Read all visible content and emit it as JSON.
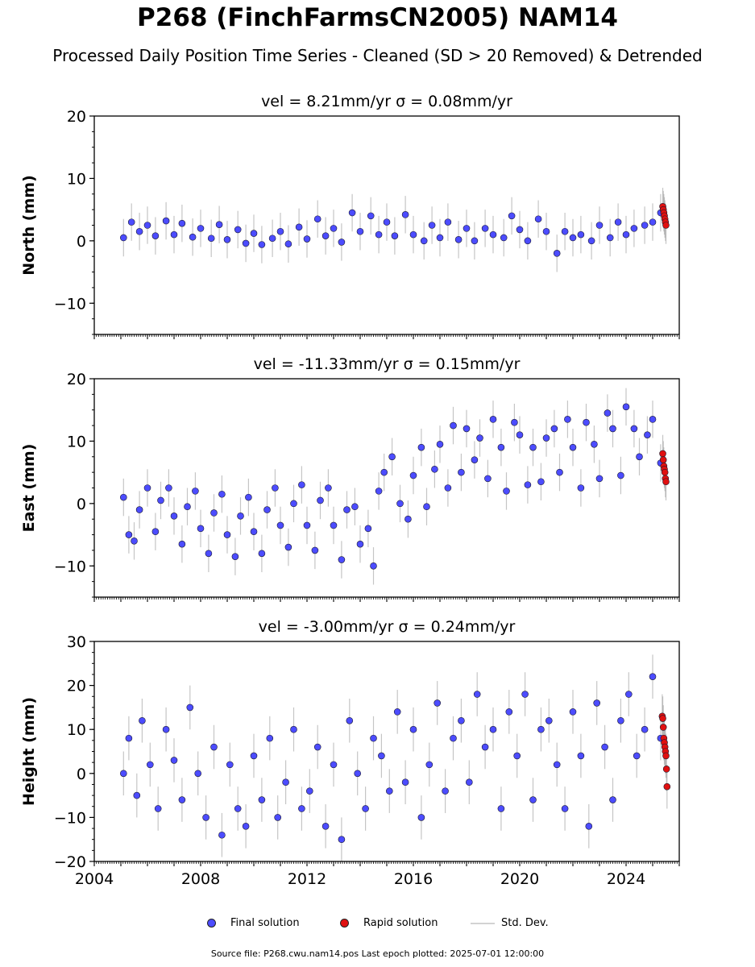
{
  "header": {
    "title": "P268 (FinchFarmsCN2005) NAM14",
    "subtitle": "Processed Daily Position Time Series - Cleaned (SD > 20 Removed) & Detrended"
  },
  "legend": {
    "final": "Final solution",
    "rapid": "Rapid solution",
    "std": "Std. Dev."
  },
  "footer": {
    "source": "Source file: P268.cwu.nam14.pos  Last epoch plotted: 2025-07-01 12:00:00"
  },
  "colors": {
    "final": "#4c4cff",
    "rapid": "#e01010",
    "std": "#a0a0a0",
    "edge": "#1a1a2e"
  },
  "chart_data": [
    {
      "type": "scatter",
      "title": "vel = 8.21mm/yr   σ = 0.08mm/yr",
      "ylabel": "North (mm)",
      "xlim": [
        2004.0,
        2026.0
      ],
      "ylim": [
        -15,
        20
      ],
      "yticks": [
        -10,
        0,
        10,
        20
      ],
      "ytick_labels": [
        "−10",
        "0",
        "10",
        "20"
      ],
      "xticks": [],
      "xtick_labels": [],
      "series": [
        {
          "name": "Final solution",
          "x": [
            2005.1,
            2005.4,
            2005.7,
            2006.0,
            2006.3,
            2006.7,
            2007.0,
            2007.3,
            2007.7,
            2008.0,
            2008.4,
            2008.7,
            2009.0,
            2009.4,
            2009.7,
            2010.0,
            2010.3,
            2010.7,
            2011.0,
            2011.3,
            2011.7,
            2012.0,
            2012.4,
            2012.7,
            2013.0,
            2013.3,
            2013.7,
            2014.0,
            2014.4,
            2014.7,
            2015.0,
            2015.3,
            2015.7,
            2016.0,
            2016.4,
            2016.7,
            2017.0,
            2017.3,
            2017.7,
            2018.0,
            2018.3,
            2018.7,
            2019.0,
            2019.4,
            2019.7,
            2020.0,
            2020.3,
            2020.7,
            2021.0,
            2021.4,
            2021.7,
            2022.0,
            2022.3,
            2022.7,
            2023.0,
            2023.4,
            2023.7,
            2024.0,
            2024.3,
            2024.7,
            2025.0,
            2025.3
          ],
          "y": [
            0.5,
            3.0,
            1.5,
            2.5,
            0.8,
            3.2,
            1.0,
            2.8,
            0.6,
            2.0,
            0.4,
            2.6,
            0.2,
            1.8,
            -0.4,
            1.2,
            -0.6,
            0.4,
            1.5,
            -0.5,
            2.2,
            0.3,
            3.5,
            0.8,
            2.0,
            -0.2,
            4.5,
            1.5,
            4.0,
            1.0,
            3.0,
            0.8,
            4.2,
            1.0,
            0.0,
            2.5,
            0.5,
            3.0,
            0.2,
            2.0,
            0.0,
            2.0,
            1.0,
            0.5,
            4.0,
            1.8,
            0.0,
            3.5,
            1.5,
            -2.0,
            1.5,
            0.5,
            1.0,
            0.0,
            2.5,
            0.5,
            3.0,
            1.0,
            2.0,
            2.5,
            3.0,
            4.5
          ]
        },
        {
          "name": "Rapid solution",
          "x": [
            2025.38,
            2025.4,
            2025.42,
            2025.44,
            2025.46,
            2025.48,
            2025.5
          ],
          "y": [
            5.5,
            5.0,
            4.5,
            4.0,
            3.5,
            3.0,
            2.5
          ]
        }
      ]
    },
    {
      "type": "scatter",
      "title": "vel = -11.33mm/yr   σ = 0.15mm/yr",
      "ylabel": "East (mm)",
      "xlim": [
        2004.0,
        2026.0
      ],
      "ylim": [
        -15,
        20
      ],
      "yticks": [
        -10,
        0,
        10,
        20
      ],
      "ytick_labels": [
        "−10",
        "0",
        "10",
        "20"
      ],
      "xticks": [],
      "xtick_labels": [],
      "series": [
        {
          "name": "Final solution",
          "x": [
            2005.1,
            2005.3,
            2005.5,
            2005.7,
            2006.0,
            2006.3,
            2006.5,
            2006.8,
            2007.0,
            2007.3,
            2007.5,
            2007.8,
            2008.0,
            2008.3,
            2008.5,
            2008.8,
            2009.0,
            2009.3,
            2009.5,
            2009.8,
            2010.0,
            2010.3,
            2010.5,
            2010.8,
            2011.0,
            2011.3,
            2011.5,
            2011.8,
            2012.0,
            2012.3,
            2012.5,
            2012.8,
            2013.0,
            2013.3,
            2013.5,
            2013.8,
            2014.0,
            2014.3,
            2014.5,
            2014.7,
            2014.9,
            2015.2,
            2015.5,
            2015.8,
            2016.0,
            2016.3,
            2016.5,
            2016.8,
            2017.0,
            2017.3,
            2017.5,
            2017.8,
            2018.0,
            2018.3,
            2018.5,
            2018.8,
            2019.0,
            2019.3,
            2019.5,
            2019.8,
            2020.0,
            2020.3,
            2020.5,
            2020.8,
            2021.0,
            2021.3,
            2021.5,
            2021.8,
            2022.0,
            2022.3,
            2022.5,
            2022.8,
            2023.0,
            2023.3,
            2023.5,
            2023.8,
            2024.0,
            2024.3,
            2024.5,
            2024.8,
            2025.0,
            2025.3
          ],
          "y": [
            1.0,
            -5.0,
            -6.0,
            -1.0,
            2.5,
            -4.5,
            0.5,
            2.5,
            -2.0,
            -6.5,
            -0.5,
            2.0,
            -4.0,
            -8.0,
            -1.5,
            1.5,
            -5.0,
            -8.5,
            -2.0,
            1.0,
            -4.5,
            -8.0,
            -1.0,
            2.5,
            -3.5,
            -7.0,
            0.0,
            3.0,
            -3.5,
            -7.5,
            0.5,
            2.5,
            -3.5,
            -9.0,
            -1.0,
            -0.5,
            -6.5,
            -4.0,
            -10.0,
            2.0,
            5.0,
            7.5,
            0.0,
            -2.5,
            4.5,
            9.0,
            -0.5,
            5.5,
            9.5,
            2.5,
            12.5,
            5.0,
            12.0,
            7.0,
            10.5,
            4.0,
            13.5,
            9.0,
            2.0,
            13.0,
            11.0,
            3.0,
            9.0,
            3.5,
            10.5,
            12.0,
            5.0,
            13.5,
            9.0,
            2.5,
            13.0,
            9.5,
            4.0,
            14.5,
            12.0,
            4.5,
            15.5,
            12.0,
            7.5,
            11.0,
            13.5,
            6.5
          ]
        },
        {
          "name": "Rapid solution",
          "x": [
            2025.38,
            2025.4,
            2025.42,
            2025.44,
            2025.46,
            2025.48,
            2025.5
          ],
          "y": [
            8.0,
            7.0,
            6.0,
            5.5,
            5.0,
            4.0,
            3.5
          ]
        }
      ]
    },
    {
      "type": "scatter",
      "title": "vel = -3.00mm/yr   σ = 0.24mm/yr",
      "ylabel": "Height (mm)",
      "xlim": [
        2004.0,
        2026.0
      ],
      "ylim": [
        -20,
        30
      ],
      "yticks": [
        -20,
        -10,
        0,
        10,
        20,
        30
      ],
      "ytick_labels": [
        "−20",
        "−10",
        "0",
        "10",
        "20",
        "30"
      ],
      "xticks": [
        2004,
        2008,
        2012,
        2016,
        2020,
        2024
      ],
      "xtick_labels": [
        "2004",
        "2008",
        "2012",
        "2016",
        "2020",
        "2024"
      ],
      "series": [
        {
          "name": "Final solution",
          "x": [
            2005.1,
            2005.3,
            2005.6,
            2005.8,
            2006.1,
            2006.4,
            2006.7,
            2007.0,
            2007.3,
            2007.6,
            2007.9,
            2008.2,
            2008.5,
            2008.8,
            2009.1,
            2009.4,
            2009.7,
            2010.0,
            2010.3,
            2010.6,
            2010.9,
            2011.2,
            2011.5,
            2011.8,
            2012.1,
            2012.4,
            2012.7,
            2013.0,
            2013.3,
            2013.6,
            2013.9,
            2014.2,
            2014.5,
            2014.8,
            2015.1,
            2015.4,
            2015.7,
            2016.0,
            2016.3,
            2016.6,
            2016.9,
            2017.2,
            2017.5,
            2017.8,
            2018.1,
            2018.4,
            2018.7,
            2019.0,
            2019.3,
            2019.6,
            2019.9,
            2020.2,
            2020.5,
            2020.8,
            2021.1,
            2021.4,
            2021.7,
            2022.0,
            2022.3,
            2022.6,
            2022.9,
            2023.2,
            2023.5,
            2023.8,
            2024.1,
            2024.4,
            2024.7,
            2025.0,
            2025.3
          ],
          "y": [
            0.0,
            8.0,
            -5.0,
            12.0,
            2.0,
            -8.0,
            10.0,
            3.0,
            -6.0,
            15.0,
            0.0,
            -10.0,
            6.0,
            -14.0,
            2.0,
            -8.0,
            -12.0,
            4.0,
            -6.0,
            8.0,
            -10.0,
            -2.0,
            10.0,
            -8.0,
            -4.0,
            6.0,
            -12.0,
            2.0,
            -15.0,
            12.0,
            0.0,
            -8.0,
            8.0,
            4.0,
            -4.0,
            14.0,
            -2.0,
            10.0,
            -10.0,
            2.0,
            16.0,
            -4.0,
            8.0,
            12.0,
            -2.0,
            18.0,
            6.0,
            10.0,
            -8.0,
            14.0,
            4.0,
            18.0,
            -6.0,
            10.0,
            12.0,
            2.0,
            -8.0,
            14.0,
            4.0,
            -12.0,
            16.0,
            6.0,
            -6.0,
            12.0,
            18.0,
            4.0,
            10.0,
            22.0,
            8.0
          ]
        },
        {
          "name": "Rapid solution",
          "x": [
            2025.36,
            2025.38,
            2025.4,
            2025.42,
            2025.44,
            2025.46,
            2025.48,
            2025.5,
            2025.52,
            2025.54
          ],
          "y": [
            13.0,
            12.5,
            10.5,
            8.0,
            7.0,
            6.0,
            5.0,
            4.0,
            1.0,
            -3.0
          ]
        }
      ]
    }
  ]
}
